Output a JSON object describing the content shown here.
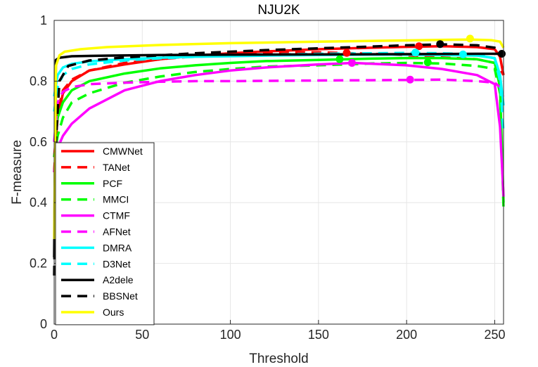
{
  "chart_data": {
    "type": "line",
    "title": "NJU2K",
    "xlabel": "Threshold",
    "ylabel": "F-measure",
    "xlim": [
      0,
      255
    ],
    "ylim": [
      0,
      1
    ],
    "xticks": [
      "0",
      "50",
      "100",
      "150",
      "200",
      "250"
    ],
    "yticks": [
      "0",
      "0.2",
      "0.4",
      "0.6",
      "0.8",
      "1"
    ],
    "grid": true,
    "legend_position": "bottom-left",
    "series": [
      {
        "name": "CMWNet",
        "color": "#ff0000",
        "style": "solid",
        "points": [
          [
            0,
            0.55
          ],
          [
            2,
            0.68
          ],
          [
            5,
            0.76
          ],
          [
            10,
            0.8
          ],
          [
            20,
            0.835
          ],
          [
            40,
            0.855
          ],
          [
            60,
            0.872
          ],
          [
            80,
            0.884
          ],
          [
            100,
            0.892
          ],
          [
            120,
            0.898
          ],
          [
            150,
            0.905
          ],
          [
            180,
            0.91
          ],
          [
            200,
            0.913
          ],
          [
            220,
            0.915
          ],
          [
            240,
            0.912
          ],
          [
            250,
            0.905
          ],
          [
            253,
            0.88
          ],
          [
            255,
            0.82
          ]
        ],
        "marker": [
          207,
          0.915
        ]
      },
      {
        "name": "TANet",
        "color": "#ff0000",
        "style": "dashed",
        "points": [
          [
            0,
            0.5
          ],
          [
            2,
            0.7
          ],
          [
            5,
            0.77
          ],
          [
            10,
            0.805
          ],
          [
            20,
            0.835
          ],
          [
            40,
            0.86
          ],
          [
            60,
            0.872
          ],
          [
            80,
            0.882
          ],
          [
            100,
            0.889
          ],
          [
            120,
            0.893
          ],
          [
            150,
            0.895
          ],
          [
            180,
            0.89
          ],
          [
            200,
            0.885
          ],
          [
            220,
            0.878
          ],
          [
            240,
            0.872
          ],
          [
            250,
            0.86
          ],
          [
            253,
            0.84
          ],
          [
            255,
            0.82
          ]
        ],
        "marker": [
          166,
          0.893
        ]
      },
      {
        "name": "PCF",
        "color": "#00ff00",
        "style": "solid",
        "points": [
          [
            0,
            0.6
          ],
          [
            2,
            0.68
          ],
          [
            5,
            0.73
          ],
          [
            10,
            0.77
          ],
          [
            20,
            0.8
          ],
          [
            40,
            0.825
          ],
          [
            60,
            0.842
          ],
          [
            80,
            0.852
          ],
          [
            100,
            0.86
          ],
          [
            120,
            0.866
          ],
          [
            150,
            0.87
          ],
          [
            180,
            0.874
          ],
          [
            200,
            0.876
          ],
          [
            220,
            0.876
          ],
          [
            240,
            0.872
          ],
          [
            250,
            0.86
          ],
          [
            253,
            0.78
          ],
          [
            255,
            0.4
          ]
        ],
        "marker": [
          162,
          0.872
        ]
      },
      {
        "name": "MMCI",
        "color": "#00ff00",
        "style": "dashed",
        "points": [
          [
            0,
            0.55
          ],
          [
            2,
            0.62
          ],
          [
            5,
            0.68
          ],
          [
            10,
            0.73
          ],
          [
            20,
            0.76
          ],
          [
            40,
            0.795
          ],
          [
            60,
            0.815
          ],
          [
            80,
            0.83
          ],
          [
            100,
            0.84
          ],
          [
            120,
            0.848
          ],
          [
            150,
            0.852
          ],
          [
            180,
            0.858
          ],
          [
            200,
            0.86
          ],
          [
            220,
            0.858
          ],
          [
            240,
            0.85
          ],
          [
            250,
            0.84
          ],
          [
            253,
            0.76
          ],
          [
            255,
            0.38
          ]
        ],
        "marker": [
          212,
          0.862
        ]
      },
      {
        "name": "CTMF",
        "color": "#ff00ff",
        "style": "solid",
        "points": [
          [
            0,
            0.5
          ],
          [
            2,
            0.58
          ],
          [
            5,
            0.62
          ],
          [
            10,
            0.66
          ],
          [
            20,
            0.71
          ],
          [
            40,
            0.77
          ],
          [
            60,
            0.8
          ],
          [
            80,
            0.82
          ],
          [
            100,
            0.835
          ],
          [
            120,
            0.845
          ],
          [
            150,
            0.855
          ],
          [
            170,
            0.86
          ],
          [
            200,
            0.852
          ],
          [
            220,
            0.84
          ],
          [
            240,
            0.82
          ],
          [
            250,
            0.79
          ],
          [
            253,
            0.65
          ],
          [
            255,
            0.42
          ]
        ],
        "marker": [
          169,
          0.86
        ]
      },
      {
        "name": "AFNet",
        "color": "#ff00ff",
        "style": "dashed",
        "points": [
          [
            0,
            0.6
          ],
          [
            2,
            0.73
          ],
          [
            5,
            0.765
          ],
          [
            10,
            0.78
          ],
          [
            20,
            0.79
          ],
          [
            40,
            0.795
          ],
          [
            60,
            0.798
          ],
          [
            80,
            0.8
          ],
          [
            100,
            0.8
          ],
          [
            120,
            0.801
          ],
          [
            150,
            0.802
          ],
          [
            180,
            0.803
          ],
          [
            200,
            0.804
          ],
          [
            220,
            0.805
          ],
          [
            240,
            0.8
          ],
          [
            250,
            0.795
          ],
          [
            253,
            0.78
          ],
          [
            255,
            0.75
          ]
        ],
        "marker": [
          202,
          0.805
        ]
      },
      {
        "name": "DMRA",
        "color": "#00ffff",
        "style": "solid",
        "points": [
          [
            0,
            0.75
          ],
          [
            2,
            0.82
          ],
          [
            5,
            0.845
          ],
          [
            10,
            0.857
          ],
          [
            20,
            0.865
          ],
          [
            40,
            0.872
          ],
          [
            60,
            0.877
          ],
          [
            80,
            0.88
          ],
          [
            100,
            0.882
          ],
          [
            120,
            0.884
          ],
          [
            150,
            0.886
          ],
          [
            180,
            0.887
          ],
          [
            200,
            0.887
          ],
          [
            220,
            0.886
          ],
          [
            240,
            0.884
          ],
          [
            250,
            0.876
          ],
          [
            253,
            0.82
          ],
          [
            255,
            0.72
          ]
        ],
        "marker": [
          232,
          0.888
        ]
      },
      {
        "name": "D3Net",
        "color": "#00ffff",
        "style": "dashed",
        "points": [
          [
            0,
            0.7
          ],
          [
            2,
            0.78
          ],
          [
            5,
            0.82
          ],
          [
            10,
            0.84
          ],
          [
            20,
            0.855
          ],
          [
            40,
            0.868
          ],
          [
            60,
            0.875
          ],
          [
            80,
            0.88
          ],
          [
            100,
            0.884
          ],
          [
            120,
            0.887
          ],
          [
            150,
            0.89
          ],
          [
            180,
            0.892
          ],
          [
            200,
            0.893
          ],
          [
            220,
            0.892
          ],
          [
            240,
            0.888
          ],
          [
            250,
            0.875
          ],
          [
            253,
            0.8
          ],
          [
            255,
            0.63
          ]
        ],
        "marker": [
          205,
          0.894
        ]
      },
      {
        "name": "A2dele",
        "color": "#000000",
        "style": "solid",
        "points": [
          [
            0,
            0.22
          ],
          [
            1,
            0.87
          ],
          [
            3,
            0.877
          ],
          [
            10,
            0.882
          ],
          [
            30,
            0.884
          ],
          [
            60,
            0.886
          ],
          [
            100,
            0.887
          ],
          [
            150,
            0.888
          ],
          [
            200,
            0.889
          ],
          [
            240,
            0.89
          ],
          [
            250,
            0.89
          ],
          [
            255,
            0.89
          ]
        ],
        "marker": [
          254,
          0.89
        ]
      },
      {
        "name": "BBSNet",
        "color": "#000000",
        "style": "dashed",
        "points": [
          [
            0,
            0.16
          ],
          [
            1,
            0.6
          ],
          [
            3,
            0.8
          ],
          [
            8,
            0.85
          ],
          [
            20,
            0.868
          ],
          [
            40,
            0.878
          ],
          [
            60,
            0.885
          ],
          [
            80,
            0.892
          ],
          [
            100,
            0.897
          ],
          [
            120,
            0.902
          ],
          [
            150,
            0.908
          ],
          [
            180,
            0.914
          ],
          [
            200,
            0.918
          ],
          [
            220,
            0.921
          ],
          [
            240,
            0.918
          ],
          [
            250,
            0.91
          ],
          [
            253,
            0.9
          ],
          [
            255,
            0.88
          ]
        ],
        "marker": [
          219,
          0.922
        ]
      },
      {
        "name": "Ours",
        "color": "#ffff00",
        "style": "solid",
        "points": [
          [
            0,
            0.28
          ],
          [
            1,
            0.85
          ],
          [
            3,
            0.885
          ],
          [
            6,
            0.897
          ],
          [
            15,
            0.905
          ],
          [
            30,
            0.912
          ],
          [
            60,
            0.919
          ],
          [
            100,
            0.925
          ],
          [
            150,
            0.93
          ],
          [
            200,
            0.934
          ],
          [
            236,
            0.937
          ],
          [
            248,
            0.935
          ],
          [
            253,
            0.93
          ],
          [
            255,
            0.91
          ]
        ],
        "marker": [
          236,
          0.94
        ]
      }
    ]
  }
}
